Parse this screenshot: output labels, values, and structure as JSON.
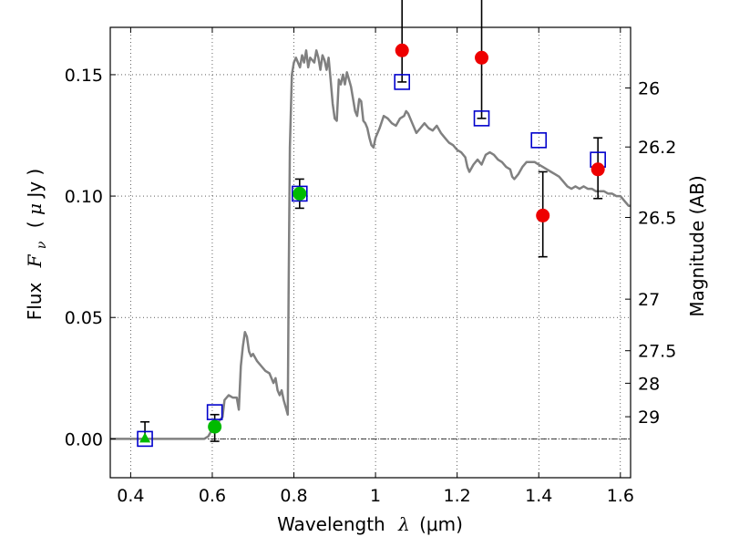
{
  "chart_data": {
    "type": "scatter",
    "title": "",
    "xlabel": "Wavelength  λ (μm)",
    "xlabel_parts": {
      "text": "Wavelength",
      "symbol": "λ",
      "unit": "(μm)"
    },
    "ylabel": "Flux  Fν  ( μJy )",
    "ylabel_parts": {
      "text": "Flux",
      "symbol": "F",
      "subscript": "ν",
      "unit_open": "( ",
      "unit_mu": "μ",
      "unit": "Jy )"
    },
    "ylabel_right": "Magnitude (AB)",
    "xlim": [
      0.35,
      1.625
    ],
    "ylim": [
      -0.016,
      0.1695
    ],
    "grid": true,
    "xticks": [
      {
        "value": 0.4,
        "label": "0.4"
      },
      {
        "value": 0.6,
        "label": "0.6"
      },
      {
        "value": 0.8,
        "label": "0.8"
      },
      {
        "value": 1.0,
        "label": "1"
      },
      {
        "value": 1.2,
        "label": "1.2"
      },
      {
        "value": 1.4,
        "label": "1.4"
      },
      {
        "value": 1.6,
        "label": "1.6"
      }
    ],
    "yticks": [
      {
        "value": 0.0,
        "label": "0.00"
      },
      {
        "value": 0.05,
        "label": "0.05"
      },
      {
        "value": 0.1,
        "label": "0.10"
      },
      {
        "value": 0.15,
        "label": "0.15"
      }
    ],
    "right_ticks": [
      {
        "mag": 26,
        "label": "26"
      },
      {
        "mag": 26.2,
        "label": "26.2"
      },
      {
        "mag": 26.5,
        "label": "26.5"
      },
      {
        "mag": 27,
        "label": "27"
      },
      {
        "mag": 27.5,
        "label": "27.5"
      },
      {
        "mag": 28,
        "label": "28"
      },
      {
        "mag": 29,
        "label": "29"
      }
    ],
    "zero_line": {
      "y": 0.0,
      "style": "dash-dot",
      "color": "#000000"
    },
    "series": [
      {
        "name": "model-sed",
        "kind": "line",
        "color": "#808080",
        "points": [
          [
            0.35,
            0.0
          ],
          [
            0.58,
            0.0
          ],
          [
            0.59,
            0.001
          ],
          [
            0.6,
            0.004
          ],
          [
            0.605,
            0.008
          ],
          [
            0.61,
            0.006
          ],
          [
            0.625,
            0.009
          ],
          [
            0.63,
            0.016
          ],
          [
            0.64,
            0.018
          ],
          [
            0.65,
            0.017
          ],
          [
            0.66,
            0.017
          ],
          [
            0.665,
            0.012
          ],
          [
            0.67,
            0.03
          ],
          [
            0.675,
            0.038
          ],
          [
            0.68,
            0.044
          ],
          [
            0.685,
            0.042
          ],
          [
            0.69,
            0.036
          ],
          [
            0.695,
            0.034
          ],
          [
            0.7,
            0.035
          ],
          [
            0.71,
            0.032
          ],
          [
            0.72,
            0.03
          ],
          [
            0.73,
            0.028
          ],
          [
            0.74,
            0.027
          ],
          [
            0.75,
            0.023
          ],
          [
            0.755,
            0.025
          ],
          [
            0.76,
            0.02
          ],
          [
            0.765,
            0.018
          ],
          [
            0.77,
            0.02
          ],
          [
            0.775,
            0.016
          ],
          [
            0.78,
            0.013
          ],
          [
            0.785,
            0.01
          ],
          [
            0.787,
            0.06
          ],
          [
            0.79,
            0.12
          ],
          [
            0.795,
            0.15
          ],
          [
            0.8,
            0.155
          ],
          [
            0.805,
            0.157
          ],
          [
            0.81,
            0.155
          ],
          [
            0.815,
            0.153
          ],
          [
            0.82,
            0.158
          ],
          [
            0.825,
            0.155
          ],
          [
            0.83,
            0.16
          ],
          [
            0.835,
            0.153
          ],
          [
            0.84,
            0.157
          ],
          [
            0.85,
            0.155
          ],
          [
            0.855,
            0.16
          ],
          [
            0.86,
            0.157
          ],
          [
            0.865,
            0.152
          ],
          [
            0.87,
            0.158
          ],
          [
            0.875,
            0.156
          ],
          [
            0.88,
            0.152
          ],
          [
            0.885,
            0.157
          ],
          [
            0.89,
            0.148
          ],
          [
            0.895,
            0.138
          ],
          [
            0.9,
            0.132
          ],
          [
            0.905,
            0.131
          ],
          [
            0.91,
            0.148
          ],
          [
            0.915,
            0.146
          ],
          [
            0.92,
            0.15
          ],
          [
            0.925,
            0.146
          ],
          [
            0.93,
            0.151
          ],
          [
            0.935,
            0.148
          ],
          [
            0.94,
            0.145
          ],
          [
            0.95,
            0.135
          ],
          [
            0.955,
            0.133
          ],
          [
            0.96,
            0.14
          ],
          [
            0.965,
            0.139
          ],
          [
            0.97,
            0.131
          ],
          [
            0.975,
            0.13
          ],
          [
            0.98,
            0.128
          ],
          [
            0.985,
            0.124
          ],
          [
            0.99,
            0.121
          ],
          [
            0.995,
            0.12
          ],
          [
            1.0,
            0.124
          ],
          [
            1.01,
            0.128
          ],
          [
            1.02,
            0.133
          ],
          [
            1.03,
            0.132
          ],
          [
            1.04,
            0.13
          ],
          [
            1.05,
            0.129
          ],
          [
            1.06,
            0.132
          ],
          [
            1.07,
            0.133
          ],
          [
            1.075,
            0.135
          ],
          [
            1.08,
            0.134
          ],
          [
            1.09,
            0.13
          ],
          [
            1.1,
            0.126
          ],
          [
            1.11,
            0.128
          ],
          [
            1.12,
            0.13
          ],
          [
            1.13,
            0.128
          ],
          [
            1.14,
            0.127
          ],
          [
            1.15,
            0.129
          ],
          [
            1.16,
            0.126
          ],
          [
            1.17,
            0.124
          ],
          [
            1.18,
            0.122
          ],
          [
            1.19,
            0.121
          ],
          [
            1.2,
            0.119
          ],
          [
            1.21,
            0.118
          ],
          [
            1.22,
            0.116
          ],
          [
            1.225,
            0.112
          ],
          [
            1.23,
            0.11
          ],
          [
            1.24,
            0.113
          ],
          [
            1.25,
            0.115
          ],
          [
            1.26,
            0.113
          ],
          [
            1.27,
            0.117
          ],
          [
            1.28,
            0.118
          ],
          [
            1.29,
            0.117
          ],
          [
            1.3,
            0.115
          ],
          [
            1.31,
            0.114
          ],
          [
            1.32,
            0.112
          ],
          [
            1.33,
            0.111
          ],
          [
            1.335,
            0.108
          ],
          [
            1.34,
            0.107
          ],
          [
            1.35,
            0.109
          ],
          [
            1.36,
            0.112
          ],
          [
            1.37,
            0.114
          ],
          [
            1.38,
            0.114
          ],
          [
            1.39,
            0.114
          ],
          [
            1.4,
            0.113
          ],
          [
            1.41,
            0.112
          ],
          [
            1.42,
            0.111
          ],
          [
            1.43,
            0.11
          ],
          [
            1.44,
            0.109
          ],
          [
            1.45,
            0.108
          ],
          [
            1.46,
            0.106
          ],
          [
            1.47,
            0.104
          ],
          [
            1.48,
            0.103
          ],
          [
            1.49,
            0.104
          ],
          [
            1.5,
            0.103
          ],
          [
            1.51,
            0.104
          ],
          [
            1.52,
            0.103
          ],
          [
            1.53,
            0.103
          ],
          [
            1.54,
            0.102
          ],
          [
            1.55,
            0.102
          ],
          [
            1.56,
            0.102
          ],
          [
            1.57,
            0.101
          ],
          [
            1.58,
            0.101
          ],
          [
            1.59,
            0.1
          ],
          [
            1.6,
            0.1
          ],
          [
            1.61,
            0.098
          ],
          [
            1.62,
            0.096
          ],
          [
            1.625,
            0.096
          ]
        ]
      },
      {
        "name": "model-photometry",
        "kind": "open-square",
        "color": "#0000cc",
        "points": [
          [
            0.435,
            0.0
          ],
          [
            0.606,
            0.011
          ],
          [
            0.814,
            0.101
          ],
          [
            1.065,
            0.147
          ],
          [
            1.26,
            0.132
          ],
          [
            1.4,
            0.123
          ],
          [
            1.545,
            0.115
          ]
        ]
      },
      {
        "name": "observed-hst-red",
        "kind": "filled-circle",
        "color": "#ee0000",
        "points": [
          {
            "x": 1.065,
            "y": 0.16,
            "err_low": 0.147,
            "err_high": 0.185
          },
          {
            "x": 1.26,
            "y": 0.157,
            "err_low": 0.132,
            "err_high": 0.185
          },
          {
            "x": 1.41,
            "y": 0.092,
            "err_low": 0.075,
            "err_high": 0.11
          },
          {
            "x": 1.545,
            "y": 0.111,
            "err_low": 0.099,
            "err_high": 0.124
          }
        ]
      },
      {
        "name": "observed-green",
        "kind": "filled-circle",
        "color": "#00bb00",
        "points": [
          {
            "x": 0.606,
            "y": 0.005,
            "err_low": -0.001,
            "err_high": 0.01
          },
          {
            "x": 0.814,
            "y": 0.101,
            "err_low": 0.095,
            "err_high": 0.107
          }
        ]
      },
      {
        "name": "upper-limit",
        "kind": "filled-triangle",
        "color": "#00bb00",
        "points": [
          {
            "x": 0.435,
            "y": 0.0,
            "err_low": -0.001,
            "err_high": 0.007
          }
        ]
      }
    ]
  }
}
